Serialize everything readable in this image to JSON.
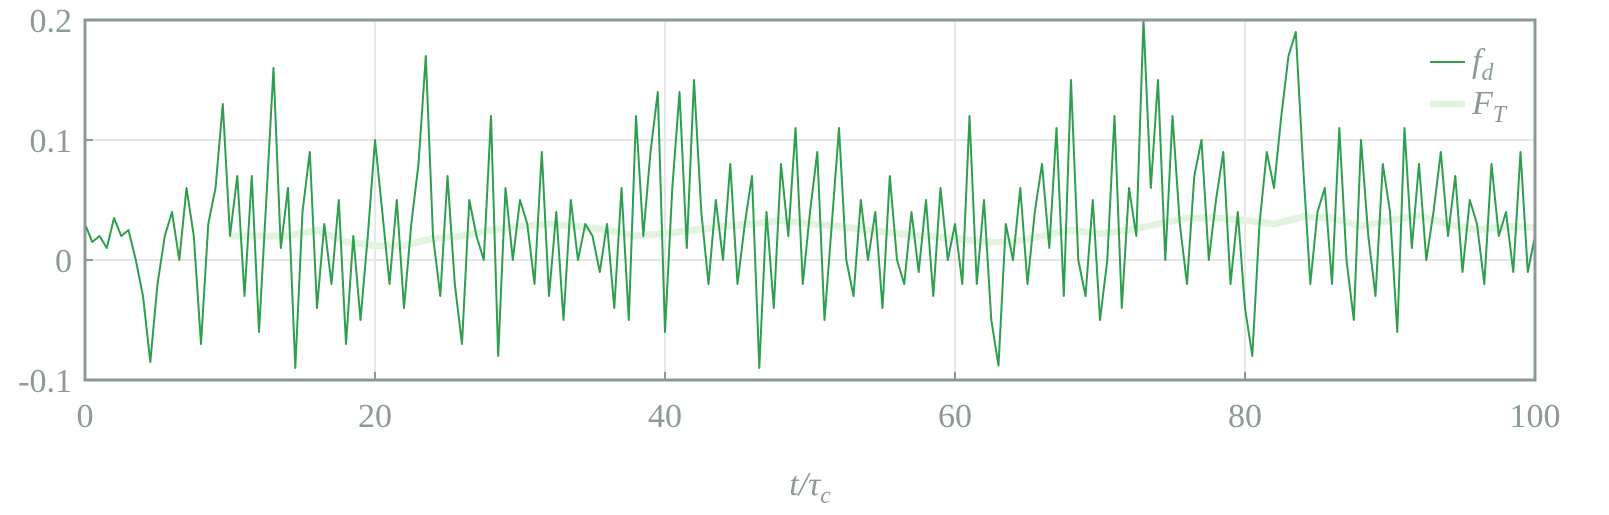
{
  "chart_data": {
    "type": "line",
    "x_label": "t/τc",
    "xlim": [
      0,
      100
    ],
    "ylim": [
      -0.1,
      0.2
    ],
    "xticks": [
      0,
      20,
      40,
      60,
      80,
      100
    ],
    "yticks": [
      -0.1,
      0,
      0.1,
      0.2
    ],
    "grid": true,
    "legend": "upper right",
    "x": [
      0,
      0.5,
      1,
      1.5,
      2,
      2.5,
      3,
      3.5,
      4,
      4.5,
      5,
      5.5,
      6,
      6.5,
      7,
      7.5,
      8,
      8.5,
      9,
      9.5,
      10,
      10.5,
      11,
      11.5,
      12,
      12.5,
      13,
      13.5,
      14,
      14.5,
      15,
      15.5,
      16,
      16.5,
      17,
      17.5,
      18,
      18.5,
      19,
      19.5,
      20,
      20.5,
      21,
      21.5,
      22,
      22.5,
      23,
      23.5,
      24,
      24.5,
      25,
      25.5,
      26,
      26.5,
      27,
      27.5,
      28,
      28.5,
      29,
      29.5,
      30,
      30.5,
      31,
      31.5,
      32,
      32.5,
      33,
      33.5,
      34,
      34.5,
      35,
      35.5,
      36,
      36.5,
      37,
      37.5,
      38,
      38.5,
      39,
      39.5,
      40,
      40.5,
      41,
      41.5,
      42,
      42.5,
      43,
      43.5,
      44,
      44.5,
      45,
      45.5,
      46,
      46.5,
      47,
      47.5,
      48,
      48.5,
      49,
      49.5,
      50,
      50.5,
      51,
      51.5,
      52,
      52.5,
      53,
      53.5,
      54,
      54.5,
      55,
      55.5,
      56,
      56.5,
      57,
      57.5,
      58,
      58.5,
      59,
      59.5,
      60,
      60.5,
      61,
      61.5,
      62,
      62.5,
      63,
      63.5,
      64,
      64.5,
      65,
      65.5,
      66,
      66.5,
      67,
      67.5,
      68,
      68.5,
      69,
      69.5,
      70,
      70.5,
      71,
      71.5,
      72,
      72.5,
      73,
      73.5,
      74,
      74.5,
      75,
      75.5,
      76,
      76.5,
      77,
      77.5,
      78,
      78.5,
      79,
      79.5,
      80,
      80.5,
      81,
      81.5,
      82,
      82.5,
      83,
      83.5,
      84,
      84.5,
      85,
      85.5,
      86,
      86.5,
      87,
      87.5,
      88,
      88.5,
      89,
      89.5,
      90,
      90.5,
      91,
      91.5,
      92,
      92.5,
      93,
      93.5,
      94,
      94.5,
      95,
      95.5,
      96,
      96.5,
      97,
      97.5,
      98,
      98.5,
      99,
      99.5,
      100
    ],
    "series": [
      {
        "name": "fd",
        "color": "#2e9e4f",
        "values": [
          0.03,
          0.015,
          0.02,
          0.01,
          0.035,
          0.02,
          0.025,
          0.0,
          -0.03,
          -0.085,
          -0.02,
          0.02,
          0.04,
          0.0,
          0.06,
          0.02,
          -0.07,
          0.03,
          0.06,
          0.13,
          0.02,
          0.07,
          -0.03,
          0.07,
          -0.06,
          0.05,
          0.16,
          0.01,
          0.06,
          -0.09,
          0.04,
          0.09,
          -0.04,
          0.03,
          -0.02,
          0.05,
          -0.07,
          0.02,
          -0.05,
          0.02,
          0.1,
          0.04,
          -0.02,
          0.05,
          -0.04,
          0.03,
          0.08,
          0.17,
          0.02,
          -0.03,
          0.07,
          -0.02,
          -0.07,
          0.05,
          0.02,
          0.0,
          0.12,
          -0.08,
          0.06,
          0.0,
          0.05,
          0.03,
          -0.02,
          0.09,
          -0.03,
          0.04,
          -0.05,
          0.05,
          0.0,
          0.03,
          0.02,
          -0.01,
          0.03,
          -0.04,
          0.06,
          -0.05,
          0.12,
          0.02,
          0.09,
          0.14,
          -0.06,
          0.06,
          0.14,
          0.01,
          0.15,
          0.04,
          -0.02,
          0.05,
          0.0,
          0.08,
          -0.02,
          0.03,
          0.07,
          -0.09,
          0.04,
          -0.04,
          0.08,
          0.02,
          0.11,
          -0.02,
          0.04,
          0.09,
          -0.05,
          0.03,
          0.11,
          0.0,
          -0.03,
          0.05,
          0.0,
          0.04,
          -0.04,
          0.07,
          0.0,
          -0.02,
          0.04,
          -0.01,
          0.05,
          -0.03,
          0.06,
          0.0,
          0.03,
          -0.02,
          0.12,
          -0.02,
          0.05,
          -0.05,
          -0.088,
          0.03,
          0.0,
          0.06,
          -0.02,
          0.04,
          0.08,
          0.01,
          0.11,
          -0.03,
          0.15,
          0.0,
          -0.03,
          0.05,
          -0.05,
          0.0,
          0.12,
          -0.04,
          0.06,
          0.02,
          0.2,
          0.06,
          0.15,
          0.0,
          0.12,
          0.03,
          -0.02,
          0.07,
          0.1,
          0.0,
          0.05,
          0.09,
          -0.02,
          0.04,
          -0.04,
          -0.08,
          0.03,
          0.09,
          0.06,
          0.12,
          0.17,
          0.19,
          0.08,
          -0.02,
          0.04,
          0.06,
          -0.02,
          0.11,
          0.0,
          -0.05,
          0.1,
          0.02,
          -0.03,
          0.08,
          0.04,
          -0.06,
          0.11,
          0.01,
          0.08,
          0.0,
          0.04,
          0.09,
          0.02,
          0.07,
          -0.01,
          0.05,
          0.03,
          -0.02,
          0.08,
          0.02,
          0.04,
          -0.01,
          0.09,
          -0.01,
          0.02
        ]
      },
      {
        "name": "FT",
        "color": "#e2f3df",
        "x": [
          10,
          12,
          14,
          16,
          18,
          20,
          22,
          24,
          26,
          28,
          30,
          32,
          34,
          36,
          38,
          40,
          42,
          44,
          46,
          48,
          50,
          52,
          54,
          56,
          58,
          60,
          62,
          64,
          66,
          68,
          70,
          72,
          74,
          76,
          78,
          80,
          82,
          84,
          86,
          88,
          90,
          92,
          94,
          96,
          98,
          100
        ],
        "values": [
          0.02,
          0.02,
          0.02,
          0.025,
          0.015,
          0.012,
          0.012,
          0.018,
          0.02,
          0.025,
          0.028,
          0.03,
          0.028,
          0.025,
          0.02,
          0.022,
          0.025,
          0.028,
          0.03,
          0.033,
          0.03,
          0.028,
          0.025,
          0.022,
          0.02,
          0.018,
          0.015,
          0.015,
          0.02,
          0.025,
          0.022,
          0.025,
          0.03,
          0.035,
          0.035,
          0.033,
          0.03,
          0.036,
          0.035,
          0.028,
          0.033,
          0.037,
          0.03,
          0.025,
          0.028,
          0.027
        ]
      }
    ]
  }
}
